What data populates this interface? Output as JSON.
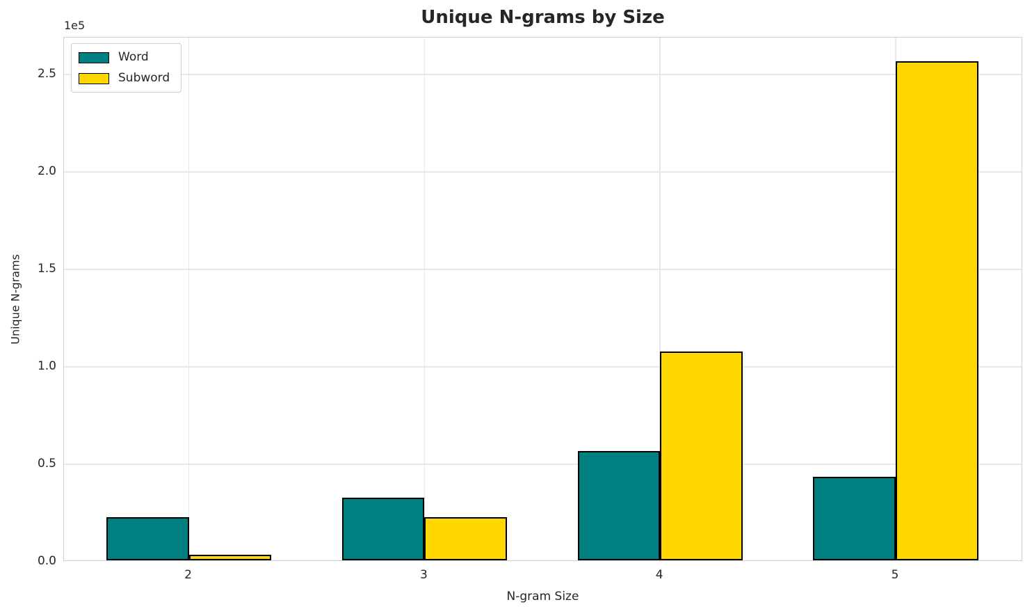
{
  "title": "Unique N-grams by Size",
  "chart_data": {
    "type": "bar",
    "title": "Unique N-grams by Size",
    "xlabel": "N-gram Size",
    "ylabel": "Unique N-grams",
    "offset_text": "1e5",
    "categories": [
      "2",
      "3",
      "4",
      "5"
    ],
    "series": [
      {
        "name": "Word",
        "color": "#008080",
        "values": [
          22000,
          32000,
          56000,
          43000
        ]
      },
      {
        "name": "Subword",
        "color": "#ffd700",
        "values": [
          3000,
          22000,
          107000,
          256000
        ]
      }
    ],
    "bar_edge_color": "#000000",
    "bar_width": 0.35,
    "xlim": [
      -0.53,
      3.54
    ],
    "ylim": [
      0,
      269000
    ],
    "yticks": [
      {
        "value": 0,
        "label": "0.0"
      },
      {
        "value": 50000,
        "label": "0.5"
      },
      {
        "value": 100000,
        "label": "1.0"
      },
      {
        "value": 150000,
        "label": "1.5"
      },
      {
        "value": 200000,
        "label": "2.0"
      },
      {
        "value": 250000,
        "label": "2.5"
      }
    ],
    "grid": true,
    "legend_position": "upper-left"
  },
  "colors": {
    "background": "#ffffff",
    "text": "#262626",
    "grid": "#e8e8e8",
    "spine": "#cfcfcf",
    "word": "#008080",
    "subword": "#ffd700",
    "bar_edge": "#000000"
  }
}
